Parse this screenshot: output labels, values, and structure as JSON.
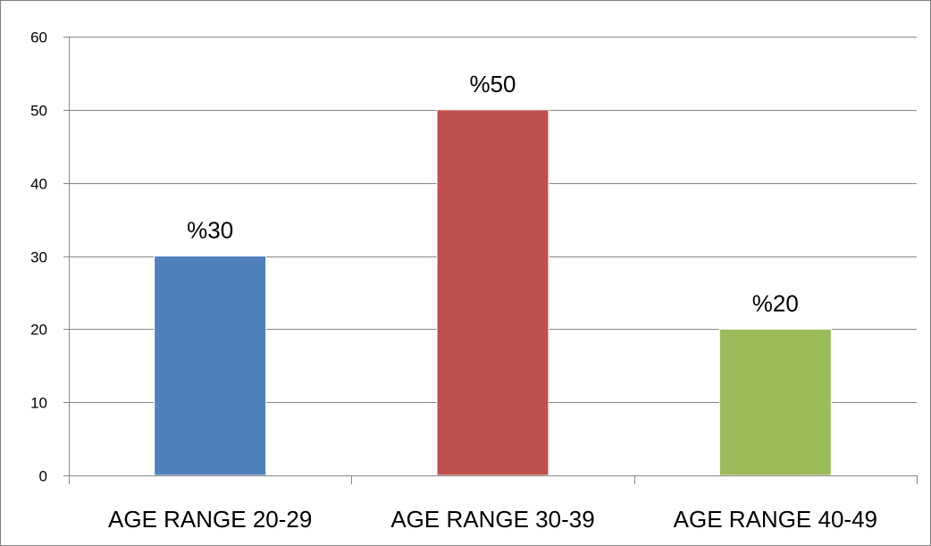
{
  "chart_data": {
    "type": "bar",
    "title": "",
    "xlabel": "",
    "ylabel": "",
    "categories": [
      "AGE RANGE 20-29",
      "AGE RANGE 30-39",
      "AGE RANGE 40-49"
    ],
    "values": [
      30,
      50,
      20
    ],
    "data_labels": [
      "%30",
      "%50",
      "%20"
    ],
    "colors": [
      "#4f81bd",
      "#c0504d",
      "#9bbb59"
    ],
    "ylim": [
      0,
      60
    ],
    "yticks": [
      0,
      10,
      20,
      30,
      40,
      50,
      60
    ],
    "grid": true,
    "legend": "none"
  }
}
